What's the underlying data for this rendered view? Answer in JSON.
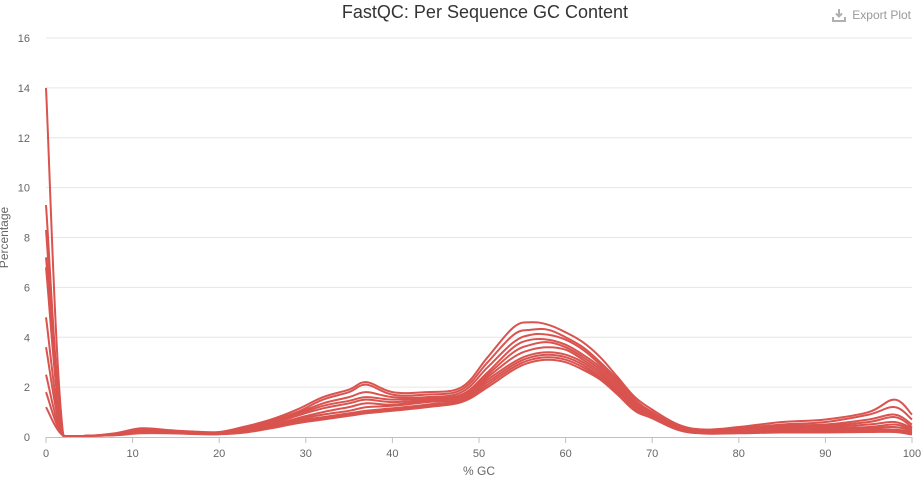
{
  "toolbar": {
    "export_label": "Export Plot",
    "export_icon": "download-icon"
  },
  "colors": {
    "series": "#d9534f",
    "grid": "#e6e6e6",
    "text": "#333333",
    "muted": "#999999"
  },
  "chart_data": {
    "type": "line",
    "title": "FastQC: Per Sequence GC Content",
    "xlabel": "% GC",
    "ylabel": "Percentage",
    "xlim": [
      0,
      100
    ],
    "ylim": [
      0,
      16
    ],
    "x_ticks": [
      0,
      10,
      20,
      30,
      40,
      50,
      60,
      70,
      80,
      90,
      100
    ],
    "y_ticks": [
      0,
      2,
      4,
      6,
      8,
      10,
      12,
      14,
      16
    ],
    "grid": true,
    "legend": "none",
    "x": [
      0,
      2,
      5,
      8,
      11,
      14,
      17,
      20,
      23,
      26,
      29,
      32,
      35,
      37,
      40,
      44,
      48,
      51,
      54,
      56,
      58,
      60,
      62,
      64,
      66,
      68,
      70,
      73,
      76,
      80,
      85,
      90,
      95,
      98,
      100
    ],
    "series": [
      {
        "values": [
          14.0,
          0.05,
          0.05,
          0.15,
          0.35,
          0.28,
          0.22,
          0.2,
          0.42,
          0.7,
          1.1,
          1.6,
          1.9,
          2.2,
          1.8,
          1.8,
          2.0,
          3.2,
          4.4,
          4.6,
          4.5,
          4.2,
          3.8,
          3.2,
          2.4,
          1.6,
          1.1,
          0.5,
          0.3,
          0.4,
          0.6,
          0.7,
          1.0,
          1.5,
          0.9
        ]
      },
      {
        "values": [
          9.3,
          0.05,
          0.05,
          0.12,
          0.3,
          0.25,
          0.2,
          0.18,
          0.38,
          0.65,
          1.0,
          1.5,
          1.8,
          2.1,
          1.7,
          1.7,
          1.9,
          3.0,
          4.1,
          4.3,
          4.3,
          4.0,
          3.6,
          3.0,
          2.3,
          1.5,
          1.0,
          0.45,
          0.25,
          0.35,
          0.5,
          0.6,
          0.9,
          1.2,
          0.7
        ]
      },
      {
        "values": [
          8.3,
          0.05,
          0.05,
          0.12,
          0.28,
          0.24,
          0.2,
          0.17,
          0.35,
          0.6,
          0.95,
          1.35,
          1.6,
          1.8,
          1.6,
          1.6,
          1.8,
          2.8,
          3.8,
          4.1,
          4.1,
          3.9,
          3.5,
          2.9,
          2.2,
          1.4,
          0.95,
          0.4,
          0.22,
          0.3,
          0.45,
          0.5,
          0.7,
          0.9,
          0.5
        ]
      },
      {
        "values": [
          7.2,
          0.05,
          0.05,
          0.1,
          0.26,
          0.22,
          0.18,
          0.16,
          0.32,
          0.55,
          0.9,
          1.25,
          1.45,
          1.6,
          1.5,
          1.55,
          1.7,
          2.6,
          3.6,
          3.9,
          3.9,
          3.7,
          3.3,
          2.8,
          2.1,
          1.35,
          0.9,
          0.38,
          0.2,
          0.28,
          0.4,
          0.45,
          0.6,
          0.8,
          0.4
        ]
      },
      {
        "values": [
          6.8,
          0.05,
          0.05,
          0.1,
          0.25,
          0.22,
          0.18,
          0.15,
          0.3,
          0.5,
          0.85,
          1.15,
          1.35,
          1.5,
          1.4,
          1.5,
          1.65,
          2.5,
          3.4,
          3.7,
          3.8,
          3.6,
          3.2,
          2.7,
          2.0,
          1.3,
          0.88,
          0.36,
          0.2,
          0.25,
          0.35,
          0.4,
          0.5,
          0.6,
          0.35
        ]
      },
      {
        "values": [
          4.8,
          0.05,
          0.05,
          0.1,
          0.22,
          0.2,
          0.16,
          0.14,
          0.28,
          0.45,
          0.75,
          1.0,
          1.2,
          1.35,
          1.3,
          1.45,
          1.6,
          2.4,
          3.2,
          3.5,
          3.6,
          3.5,
          3.1,
          2.6,
          1.9,
          1.25,
          0.85,
          0.35,
          0.18,
          0.22,
          0.3,
          0.35,
          0.4,
          0.5,
          0.3
        ]
      },
      {
        "values": [
          3.6,
          0.05,
          0.05,
          0.08,
          0.2,
          0.18,
          0.15,
          0.13,
          0.25,
          0.42,
          0.7,
          0.9,
          1.05,
          1.2,
          1.25,
          1.4,
          1.55,
          2.3,
          3.0,
          3.3,
          3.4,
          3.3,
          3.0,
          2.5,
          1.85,
          1.2,
          0.82,
          0.33,
          0.17,
          0.2,
          0.25,
          0.3,
          0.35,
          0.4,
          0.25
        ]
      },
      {
        "values": [
          2.5,
          0.05,
          0.05,
          0.08,
          0.18,
          0.17,
          0.14,
          0.12,
          0.22,
          0.4,
          0.65,
          0.8,
          0.95,
          1.05,
          1.15,
          1.3,
          1.5,
          2.2,
          2.9,
          3.2,
          3.3,
          3.2,
          2.9,
          2.4,
          1.8,
          1.15,
          0.8,
          0.32,
          0.16,
          0.18,
          0.22,
          0.25,
          0.3,
          0.3,
          0.2
        ]
      },
      {
        "values": [
          1.8,
          0.05,
          0.05,
          0.08,
          0.17,
          0.16,
          0.13,
          0.12,
          0.2,
          0.38,
          0.6,
          0.75,
          0.9,
          0.98,
          1.1,
          1.25,
          1.45,
          2.1,
          2.8,
          3.1,
          3.2,
          3.1,
          2.8,
          2.35,
          1.75,
          1.1,
          0.78,
          0.3,
          0.15,
          0.16,
          0.2,
          0.2,
          0.25,
          0.25,
          0.15
        ]
      },
      {
        "values": [
          1.2,
          0.05,
          0.05,
          0.07,
          0.15,
          0.15,
          0.12,
          0.11,
          0.18,
          0.35,
          0.55,
          0.7,
          0.85,
          0.95,
          1.05,
          1.2,
          1.4,
          2.0,
          2.7,
          3.0,
          3.1,
          3.0,
          2.7,
          2.3,
          1.7,
          1.05,
          0.75,
          0.28,
          0.14,
          0.15,
          0.18,
          0.18,
          0.2,
          0.2,
          0.1
        ]
      }
    ]
  }
}
